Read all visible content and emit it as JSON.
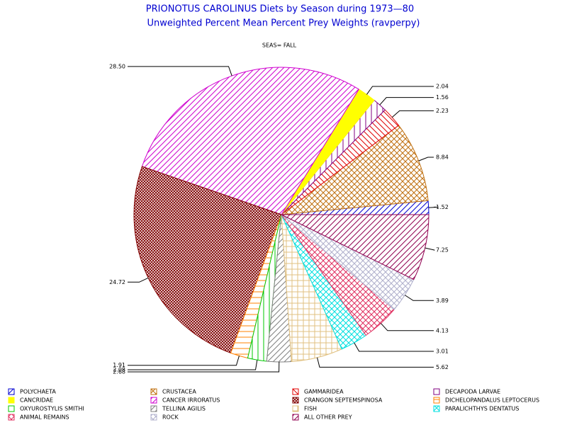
{
  "chart_data": {
    "type": "pie",
    "title": "PRIONOTUS CAROLINUS Diets by Season during 1973—80",
    "subtitle": "Unweighted Percent Mean Percent Prey  Weights (ravperpy)",
    "group_label": "SEAS= FALL",
    "categories": [
      "POLYCHAETA",
      "CRUSTACEA",
      "GAMMARIDEA",
      "DECAPODA LARVAE",
      "CANCRIDAE",
      "CANCER IRRORATUS",
      "CRANGON SEPTEMSPINOSA",
      "DICHELOPANDALUS LEPTOCERUS",
      "OXYUROSTYLIS SMITHI",
      "TELLINA AGILIS",
      "FISH",
      "PARALICHTHYS DENTATUS",
      "ANIMAL REMAINS",
      "ROCK",
      "ALL OTHER PREY"
    ],
    "values": [
      1.52,
      8.84,
      2.23,
      1.56,
      2.04,
      28.5,
      24.72,
      1.91,
      2.08,
      2.68,
      5.62,
      3.01,
      4.13,
      3.89,
      7.25
    ],
    "value_labels": [
      "1.52",
      "8.84",
      "2.23",
      "1.56",
      "2.04",
      "28.50",
      "24.72",
      "1.91",
      "2.08",
      "2.68",
      "5.62",
      "3.01",
      "4.13",
      "3.89",
      "7.25"
    ],
    "colors": [
      "#0000d0",
      "#c07010",
      "#e00000",
      "#800080",
      "#ffff00",
      "#d000d0",
      "#800000",
      "#ff8000",
      "#00c800",
      "#808080",
      "#e0c080",
      "#00e0e0",
      "#e03060",
      "#b0b0cc",
      "#900050"
    ],
    "patterns": [
      "diag",
      "cross",
      "diag2",
      "vert",
      "solid",
      "diag",
      "dense",
      "horiz",
      "vert",
      "diag",
      "grid",
      "cross",
      "cross",
      "cross",
      "diag"
    ],
    "start_angle": 0,
    "direction": "counterclockwise"
  }
}
